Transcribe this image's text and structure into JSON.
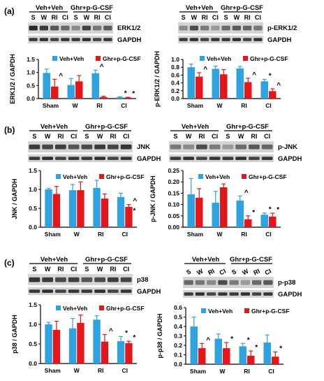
{
  "colors": {
    "veh": "#2fa3e0",
    "ghr": "#e3171b"
  },
  "legend": {
    "veh_label": "Veh+Veh",
    "ghr_label": "Ghr+p-G-CSF"
  },
  "groups": [
    "S",
    "W",
    "RI",
    "CI"
  ],
  "panels": {
    "a": {
      "label": "(a)",
      "left_blot": {
        "group1": "Veh+Veh",
        "group2": "Ghr+p-G-CSF",
        "target": "ERK1/2",
        "loading": "GAPDH"
      },
      "right_blot": {
        "group1": "Veh+Veh",
        "group2": "Ghr+p-G-CSF",
        "target": "p-ERK1/2",
        "loading": "GAPDH"
      }
    },
    "b": {
      "label": "(b)",
      "left_blot": {
        "group1": "Veh+Veh",
        "group2": "Ghr+p-G-CSF",
        "target": "JNK",
        "loading": "GAPDH"
      },
      "right_blot": {
        "group1": "Veh+Veh",
        "group2": "Ghr+p-G-CSF",
        "target": "p-JNK",
        "loading": "GAPDH"
      }
    },
    "c": {
      "label": "(c)",
      "left_blot": {
        "group1": "Veh+Veh",
        "group2": "Ghr+p-G-CSF",
        "target": "p38",
        "loading": "GAPDH"
      },
      "right_blot": {
        "group1": "Veh+Veh",
        "group2": "Ghr+p-G-CSF",
        "target": "p-p38",
        "loading": "GAPDH"
      }
    }
  },
  "chart_data": [
    {
      "id": "erk",
      "type": "bar",
      "ylabel": "ERK1/2 / GAPDH",
      "categories": [
        "Sham",
        "W",
        "RI",
        "CI"
      ],
      "ylim": [
        0,
        1.5
      ],
      "yticks": [
        0,
        0.5,
        1.0,
        1.5
      ],
      "series": [
        {
          "name": "Veh+Veh",
          "values": [
            0.98,
            0.52,
            0.97,
            0.05
          ],
          "errors": [
            0.15,
            0.25,
            0.12,
            0.02
          ]
        },
        {
          "name": "Ghr+p-G-CSF",
          "values": [
            0.46,
            0.66,
            0.06,
            0.04
          ],
          "errors": [
            0.28,
            0.22,
            0.03,
            0.01
          ]
        }
      ],
      "annotations": [
        {
          "series": 1,
          "index": 0,
          "text": "^"
        },
        {
          "series": 0,
          "index": 2,
          "text": "^"
        },
        {
          "series": 0,
          "index": 3,
          "text": "*"
        },
        {
          "series": 1,
          "index": 3,
          "text": "*"
        }
      ]
    },
    {
      "id": "perk",
      "type": "bar",
      "ylabel": "p-ERK1/2 / GAPDH",
      "categories": [
        "Sham",
        "W",
        "RI",
        "CI"
      ],
      "ylim": [
        0,
        1.0
      ],
      "yticks": [
        0,
        0.2,
        0.4,
        0.6,
        0.8,
        1.0
      ],
      "series": [
        {
          "name": "Veh+Veh",
          "values": [
            0.8,
            0.76,
            0.77,
            0.44
          ],
          "errors": [
            0.08,
            0.07,
            0.05,
            0.05
          ]
        },
        {
          "name": "Ghr+p-G-CSF",
          "values": [
            0.56,
            0.62,
            0.42,
            0.19
          ],
          "errors": [
            0.1,
            0.12,
            0.1,
            0.06
          ]
        }
      ],
      "annotations": [
        {
          "series": 1,
          "index": 0,
          "text": "^"
        },
        {
          "series": 1,
          "index": 2,
          "text": "^"
        },
        {
          "series": 0,
          "index": 3,
          "text": "*"
        },
        {
          "series": 1,
          "index": 3,
          "text": "^"
        }
      ]
    },
    {
      "id": "jnk",
      "type": "bar",
      "ylabel": "JNK / GAPDH",
      "categories": [
        "Sham",
        "W",
        "RI",
        "CI"
      ],
      "ylim": [
        0,
        1.5
      ],
      "yticks": [
        0,
        0.5,
        1.0,
        1.5
      ],
      "series": [
        {
          "name": "Veh+Veh",
          "values": [
            1.0,
            0.98,
            1.04,
            0.8
          ],
          "errors": [
            0.03,
            0.15,
            0.2,
            0.1
          ]
        },
        {
          "name": "Ghr+p-G-CSF",
          "values": [
            0.88,
            0.98,
            0.76,
            0.54
          ],
          "errors": [
            0.2,
            0.22,
            0.12,
            0.06
          ]
        }
      ],
      "annotations": [
        {
          "series": 1,
          "index": 3,
          "text": "^"
        },
        {
          "series": 1,
          "index": 3,
          "text": "*",
          "offset": 14
        }
      ]
    },
    {
      "id": "pjnk",
      "type": "bar",
      "ylabel": "p-JNK / GAPDH",
      "categories": [
        "Sham",
        "W",
        "RI",
        "CI"
      ],
      "ylim": [
        0,
        0.25
      ],
      "yticks": [
        0,
        0.05,
        0.1,
        0.15,
        0.2,
        0.25
      ],
      "series": [
        {
          "name": "Veh+Veh",
          "values": [
            0.145,
            0.108,
            0.118,
            0.055
          ],
          "errors": [
            0.07,
            0.05,
            0.02,
            0.008
          ]
        },
        {
          "name": "Ghr+p-G-CSF",
          "values": [
            0.13,
            0.176,
            0.035,
            0.047
          ],
          "errors": [
            0.04,
            0.015,
            0.015,
            0.015
          ]
        }
      ],
      "annotations": [
        {
          "series": 0,
          "index": 2,
          "text": "^"
        },
        {
          "series": 1,
          "index": 2,
          "text": "*"
        },
        {
          "series": 0,
          "index": 3,
          "text": "*"
        },
        {
          "series": 1,
          "index": 3,
          "text": "*"
        }
      ]
    },
    {
      "id": "p38",
      "type": "bar",
      "ylabel": "p38 / GAPDH",
      "categories": [
        "Sham",
        "W",
        "RI",
        "CI"
      ],
      "ylim": [
        0,
        1.5
      ],
      "yticks": [
        0,
        0.5,
        1.0,
        1.5
      ],
      "series": [
        {
          "name": "Veh+Veh",
          "values": [
            1.0,
            0.9,
            1.12,
            0.57
          ],
          "errors": [
            0.05,
            0.25,
            0.1,
            0.12
          ]
        },
        {
          "name": "Ghr+p-G-CSF",
          "values": [
            0.86,
            1.04,
            0.56,
            0.52
          ],
          "errors": [
            0.22,
            0.2,
            0.18,
            0.05
          ]
        }
      ],
      "annotations": [
        {
          "series": 1,
          "index": 2,
          "text": "^"
        },
        {
          "series": 0,
          "index": 3,
          "text": "*"
        },
        {
          "series": 1,
          "index": 3,
          "text": "*"
        }
      ]
    },
    {
      "id": "pp38",
      "type": "bar",
      "ylabel": "p-p38 / GAPDH",
      "categories": [
        "Sham",
        "W",
        "RI",
        "CI"
      ],
      "ylim": [
        0,
        0.6
      ],
      "yticks": [
        0,
        0.1,
        0.2,
        0.3,
        0.4,
        0.5,
        0.6
      ],
      "series": [
        {
          "name": "Veh+Veh",
          "values": [
            0.4,
            0.27,
            0.19,
            0.23
          ],
          "errors": [
            0.1,
            0.05,
            0.03,
            0.08
          ]
        },
        {
          "name": "Ghr+p-G-CSF",
          "values": [
            0.17,
            0.17,
            0.09,
            0.08
          ],
          "errors": [
            0.05,
            0.06,
            0.05,
            0.05
          ]
        }
      ],
      "annotations": [
        {
          "series": 1,
          "index": 0,
          "text": "^"
        },
        {
          "series": 1,
          "index": 1,
          "text": "*"
        },
        {
          "series": 0,
          "index": 2,
          "text": "*"
        },
        {
          "series": 1,
          "index": 2,
          "text": "*"
        },
        {
          "series": 1,
          "index": 3,
          "text": "*"
        }
      ]
    }
  ]
}
